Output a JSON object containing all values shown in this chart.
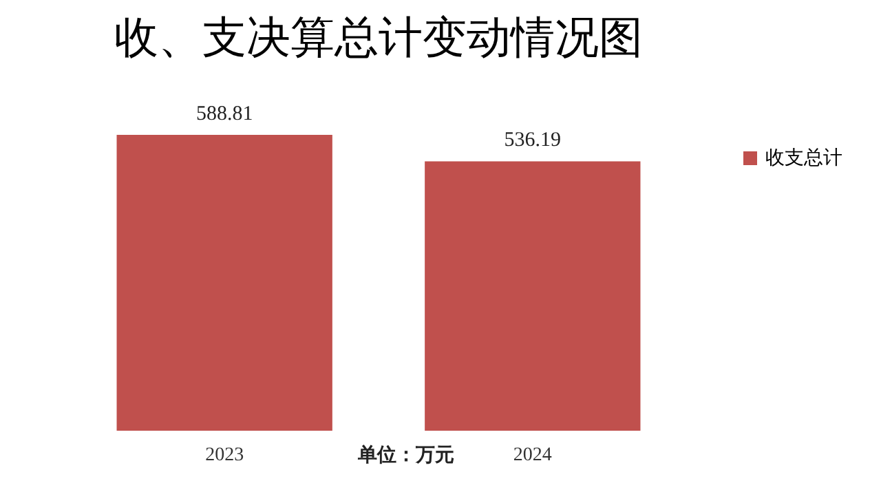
{
  "chart_data": {
    "type": "bar",
    "title": "收、支决算总计变动情况图",
    "categories": [
      "2023",
      "2024"
    ],
    "series": [
      {
        "name": "收支总计",
        "color": "#c0504d",
        "values": [
          588.81,
          536.19
        ]
      }
    ],
    "tick_labels": "x",
    "data_labels": true,
    "grid": false,
    "legend": "right",
    "annotations": [
      "单位：万元"
    ]
  }
}
